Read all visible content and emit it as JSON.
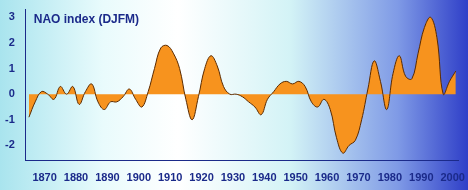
{
  "chart_data": {
    "type": "line",
    "title": "NAO index (DJFM)",
    "x": [
      1865,
      1867,
      1869,
      1871,
      1873,
      1875,
      1877,
      1879,
      1881,
      1883,
      1885,
      1887,
      1889,
      1891,
      1893,
      1895,
      1897,
      1899,
      1901,
      1903,
      1905,
      1907,
      1909,
      1911,
      1913,
      1915,
      1917,
      1919,
      1921,
      1923,
      1925,
      1927,
      1929,
      1931,
      1933,
      1935,
      1937,
      1939,
      1941,
      1943,
      1945,
      1947,
      1949,
      1951,
      1953,
      1955,
      1957,
      1959,
      1961,
      1963,
      1965,
      1967,
      1969,
      1971,
      1973,
      1975,
      1977,
      1979,
      1981,
      1983,
      1985,
      1987,
      1989,
      1991,
      1993,
      1995,
      1997,
      1999,
      2001
    ],
    "values": [
      -0.9,
      -0.3,
      0.1,
      0.0,
      -0.2,
      0.3,
      0.0,
      0.3,
      -0.4,
      0.1,
      0.4,
      -0.3,
      -0.6,
      -0.3,
      -0.3,
      -0.1,
      0.2,
      -0.2,
      -0.5,
      0.1,
      1.0,
      1.8,
      1.9,
      1.6,
      1.0,
      -0.2,
      -1.0,
      -0.1,
      1.0,
      1.5,
      1.1,
      0.3,
      0.0,
      0.0,
      -0.1,
      -0.3,
      -0.5,
      -0.8,
      -0.2,
      0.1,
      0.4,
      0.5,
      0.4,
      0.5,
      0.3,
      -0.3,
      -0.5,
      -0.2,
      -0.6,
      -1.7,
      -2.3,
      -2.0,
      -1.8,
      -1.0,
      0.2,
      1.3,
      0.5,
      -0.6,
      0.8,
      1.5,
      0.7,
      0.6,
      1.6,
      2.6,
      3.0,
      2.2,
      0.0,
      0.5,
      0.9
    ],
    "color": "#f7931e",
    "xlim": [
      1864,
      2002
    ],
    "xticks": [
      1870,
      1880,
      1890,
      1900,
      1910,
      1920,
      1930,
      1940,
      1950,
      1960,
      1970,
      1980,
      1990,
      2000
    ],
    "ylim": [
      -2.6,
      3.3
    ],
    "yticks": [
      -2,
      -1,
      0,
      1,
      2,
      3
    ],
    "grid": false
  }
}
